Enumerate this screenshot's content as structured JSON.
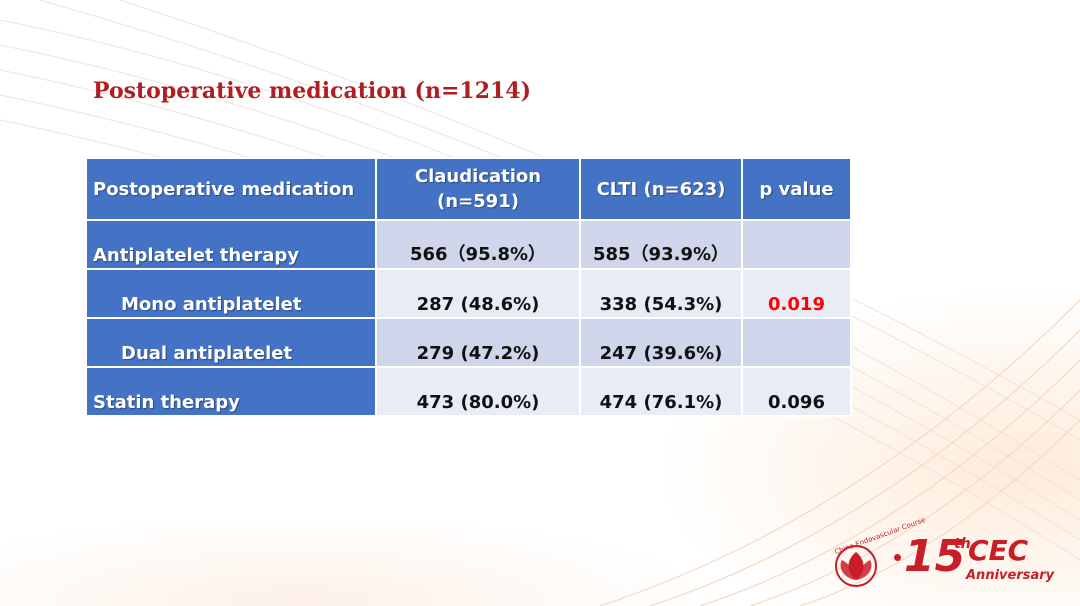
{
  "slide": {
    "title": "Postoperative medication (n=1214)"
  },
  "table": {
    "headers": [
      "Postoperative medication",
      "Claudication (n=591)",
      "CLTI (n=623)",
      "p value"
    ],
    "rows": [
      {
        "label": "Antiplatelet therapy",
        "claudication": "566（95.8%）",
        "clti": "585（93.9%）",
        "p": ""
      },
      {
        "label": "Mono antiplatelet",
        "claudication": "287 (48.6%)",
        "clti": "338 (54.3%)",
        "p": "0.019"
      },
      {
        "label": "Dual antiplatelet",
        "claudication": "279 (47.2%)",
        "clti": "247 (39.6%)",
        "p": ""
      },
      {
        "label": "Statin therapy",
        "claudication": "473 (80.0%)",
        "clti": "474 (76.1%)",
        "p": "0.096"
      }
    ]
  },
  "logo": {
    "arc_text": "China Endovascular Course",
    "number": "15",
    "suffix": "th",
    "name": "CEC",
    "tagline": "Anniversary"
  },
  "colors": {
    "title": "#b01e23",
    "header_bg": "#4472c4",
    "row_dark": "#cfd5ea",
    "row_light": "#e9ebf5",
    "significant_p": "#ff0000",
    "logo_red": "#c81e28"
  },
  "icons": [
    "lotus-emblem-icon"
  ]
}
